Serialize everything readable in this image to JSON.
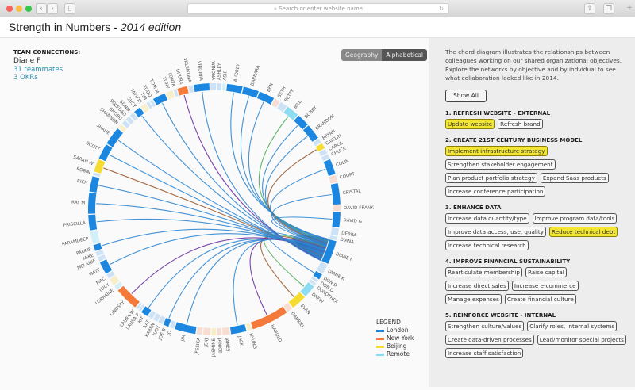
{
  "browser": {
    "url_placeholder": "Search or enter website name",
    "back": "‹",
    "forward": "›"
  },
  "header": {
    "title": "Strength in Numbers - ",
    "edition": "2014 edition"
  },
  "team": {
    "heading": "TEAM CONNECTIONS:",
    "name": "Diane F",
    "teammates": "31 teammates",
    "okrs": "3 OKRs"
  },
  "toggle": {
    "geography": "Geography",
    "alphabetical": "Alphabetical",
    "active": "Alphabetical"
  },
  "colors": {
    "London": "#1b87e0",
    "New York": "#f37a3a",
    "Beijing": "#f5dc2e",
    "Remote": "#8ddcf2"
  },
  "faded": {
    "London": "#cde3f5",
    "New York": "#f8ddd2",
    "Beijing": "#f6efc8",
    "Remote": "#d3eff8"
  },
  "chord_colors": {
    "London": "#2f86d0",
    "New York": "#6a2fa0",
    "Beijing": "#9a5a2e",
    "Remote": "#4fae5a"
  },
  "legend": {
    "heading": "LEGEND",
    "items": [
      "London",
      "New York",
      "Beijing",
      "Remote"
    ]
  },
  "people": [
    {
      "n": "ASHLEY",
      "l": "London",
      "w": 1,
      "a": false
    },
    {
      "n": "ASIF",
      "l": "Remote",
      "w": 0.8,
      "a": false
    },
    {
      "n": "AUDREY",
      "l": "London",
      "w": 3,
      "a": true
    },
    {
      "n": "BARBARA",
      "l": "London",
      "w": 3,
      "a": true
    },
    {
      "n": "BEN",
      "l": "London",
      "w": 3,
      "a": true
    },
    {
      "n": "BETH",
      "l": "New York",
      "w": 1.2,
      "a": false
    },
    {
      "n": "BETTY",
      "l": "London",
      "w": 1.5,
      "a": false
    },
    {
      "n": "BILL",
      "l": "Remote",
      "w": 2.5,
      "a": true
    },
    {
      "n": "BOBBY",
      "l": "London",
      "w": 2.5,
      "a": true
    },
    {
      "n": "BRANDON",
      "l": "London",
      "w": 3,
      "a": true
    },
    {
      "n": "BRYAN",
      "l": "London",
      "w": 1,
      "a": false
    },
    {
      "n": "CAITLIN",
      "l": "Beijing",
      "w": 1.2,
      "a": true
    },
    {
      "n": "CAROL",
      "l": "London",
      "w": 1,
      "a": false
    },
    {
      "n": "CHUCK",
      "l": "London",
      "w": 1,
      "a": false
    },
    {
      "n": "COLIN",
      "l": "London",
      "w": 3,
      "a": true
    },
    {
      "n": "COURT",
      "l": "New York",
      "w": 1.5,
      "a": false
    },
    {
      "n": "CRISTAL",
      "l": "London",
      "w": 4,
      "a": true
    },
    {
      "n": "DAVID FRANK",
      "l": "New York",
      "w": 1.2,
      "a": false
    },
    {
      "n": "DAVID G",
      "l": "London",
      "w": 3,
      "a": true
    },
    {
      "n": "DEBRA",
      "l": "London",
      "w": 1.5,
      "a": false
    },
    {
      "n": "DIANA",
      "l": "London",
      "w": 0.8,
      "a": false
    },
    {
      "n": "DIANE F",
      "l": "London",
      "w": 4.5,
      "a": true
    },
    {
      "n": "DIANE K",
      "l": "London",
      "w": 2,
      "a": false
    },
    {
      "n": "DON D",
      "l": "London",
      "w": 1.2,
      "a": true
    },
    {
      "n": "DON D",
      "l": "London",
      "w": 0.7,
      "a": false
    },
    {
      "n": "DOROTHEA",
      "l": "London",
      "w": 0.7,
      "a": false
    },
    {
      "n": "DREW",
      "l": "Remote",
      "w": 2.5,
      "a": true
    },
    {
      "n": "EVAN",
      "l": "Beijing",
      "w": 3,
      "a": true
    },
    {
      "n": "GABRIEL",
      "l": "New York",
      "w": 1.2,
      "a": false
    },
    {
      "n": "HAROLD",
      "l": "New York",
      "w": 7,
      "a": true
    },
    {
      "n": "HYUNG",
      "l": "Beijing",
      "w": 1,
      "a": false
    },
    {
      "n": "JACK",
      "l": "London",
      "w": 3,
      "a": true
    },
    {
      "n": "JAMES",
      "l": "New York",
      "w": 1.5,
      "a": false
    },
    {
      "n": "JANICE",
      "l": "New York",
      "w": 1,
      "a": false
    },
    {
      "n": "JASMINE",
      "l": "Beijing",
      "w": 1,
      "a": false
    },
    {
      "n": "JENJ",
      "l": "New York",
      "w": 1.5,
      "a": false
    },
    {
      "n": "JESSICA",
      "l": "New York",
      "w": 1.2,
      "a": false
    },
    {
      "n": "JIM",
      "l": "London",
      "w": 4,
      "a": true
    },
    {
      "n": "JO",
      "l": "London",
      "w": 1,
      "a": false
    },
    {
      "n": "JOE B",
      "l": "London",
      "w": 1.2,
      "a": true
    },
    {
      "n": "JUDY",
      "l": "London",
      "w": 1,
      "a": false
    },
    {
      "n": "KAREN",
      "l": "London",
      "w": 1,
      "a": false
    },
    {
      "n": "KAT",
      "l": "London",
      "w": 1,
      "a": false
    },
    {
      "n": "KIT",
      "l": "London",
      "w": 1.5,
      "a": true
    },
    {
      "n": "LAURA P",
      "l": "London",
      "w": 0.6,
      "a": false
    },
    {
      "n": "LAURA W",
      "l": "London",
      "w": 0.6,
      "a": false
    },
    {
      "n": "LINDSAY",
      "l": "New York",
      "w": 4.5,
      "a": true
    },
    {
      "n": "LORRAINE",
      "l": "Remote",
      "w": 1,
      "a": false
    },
    {
      "n": "LUCY",
      "l": "Beijing",
      "w": 1.5,
      "a": false
    },
    {
      "n": "MAC",
      "l": "London",
      "w": 1,
      "a": false
    },
    {
      "n": "MATT",
      "l": "London",
      "w": 2.5,
      "a": true
    },
    {
      "n": "MELANIE",
      "l": "London",
      "w": 1,
      "a": false
    },
    {
      "n": "MIKE",
      "l": "London",
      "w": 1,
      "a": false
    },
    {
      "n": "PADME",
      "l": "London",
      "w": 1.3,
      "a": true
    },
    {
      "n": "PARAMDEEP",
      "l": "Remote",
      "w": 2.5,
      "a": false
    },
    {
      "n": "PRISCILLA",
      "l": "London",
      "w": 3,
      "a": true
    },
    {
      "n": "RAY M",
      "l": "London",
      "w": 4,
      "a": true
    },
    {
      "n": "RICH",
      "l": "London",
      "w": 3,
      "a": true
    },
    {
      "n": "ROBIN",
      "l": "London",
      "w": 0.7,
      "a": false
    },
    {
      "n": "SARAH W",
      "l": "Beijing",
      "w": 2.5,
      "a": true
    },
    {
      "n": "SCOTT",
      "l": "London",
      "w": 3,
      "a": true
    },
    {
      "n": "SHANE",
      "l": "London",
      "w": 3.5,
      "a": true
    },
    {
      "n": "SHANNON",
      "l": "Beijing",
      "w": 1,
      "a": false
    },
    {
      "n": "SHOBU",
      "l": "London",
      "w": 1,
      "a": false
    },
    {
      "n": "SOLEDAD",
      "l": "London",
      "w": 1,
      "a": false
    },
    {
      "n": "SONIA",
      "l": "London",
      "w": 1,
      "a": false
    },
    {
      "n": "SUSY",
      "l": "London",
      "w": 1.5,
      "a": true
    },
    {
      "n": "TAYLOR",
      "l": "Beijing",
      "w": 1.2,
      "a": false
    },
    {
      "n": "TIM",
      "l": "London",
      "w": 0.7,
      "a": false
    },
    {
      "n": "TODD",
      "l": "London",
      "w": 0.7,
      "a": false
    },
    {
      "n": "TOM M",
      "l": "London",
      "w": 2.5,
      "a": true
    },
    {
      "n": "TONY",
      "l": "Beijing",
      "w": 1.5,
      "a": false
    },
    {
      "n": "TONYA",
      "l": "London",
      "w": 0.7,
      "a": false
    },
    {
      "n": "UHURA",
      "l": "New York",
      "w": 2,
      "a": true
    },
    {
      "n": "VALENTINA",
      "l": "London",
      "w": 1,
      "a": false
    },
    {
      "n": "VIRGINIA",
      "l": "London",
      "w": 3,
      "a": true
    },
    {
      "n": "WINONA",
      "l": "London",
      "w": 1.2,
      "a": false
    }
  ],
  "focus": "DIANE F",
  "sidebar": {
    "description": "The chord diagram illustrates the relationships between colleagues working on our shared organizational objectives. Explore the networks by objective and by indvidual to see what collaboration looked like in 2014.",
    "show_all": "Show All",
    "objectives": [
      {
        "title": "1. REFRESH WEBSITE - EXTERNAL",
        "tags": [
          {
            "t": "Update website",
            "hl": true
          },
          {
            "t": "Refresh brand",
            "hl": false
          }
        ]
      },
      {
        "title": "2. CREATE 21ST CENTURY BUSINESS MODEL",
        "tags": [
          {
            "t": "Implement infrastructure strategy",
            "hl": true
          },
          {
            "t": "Strengthen stakeholder engagement",
            "hl": false
          },
          {
            "t": "Plan product portfolio strategy",
            "hl": false
          },
          {
            "t": "Expand Saas products",
            "hl": false
          },
          {
            "t": "Increase conference participation",
            "hl": false
          }
        ]
      },
      {
        "title": "3. ENHANCE DATA",
        "tags": [
          {
            "t": "Increase data quantity/type",
            "hl": false
          },
          {
            "t": "Improve program data/tools",
            "hl": false
          },
          {
            "t": "Improve data access, use, quality",
            "hl": false
          },
          {
            "t": "Reduce technical debt",
            "hl": true
          },
          {
            "t": "Increase technical research",
            "hl": false
          }
        ]
      },
      {
        "title": "4. IMPROVE FINANCIAL SUSTAINABILITY",
        "tags": [
          {
            "t": "Rearticulate membership",
            "hl": false
          },
          {
            "t": "Raise capital",
            "hl": false
          },
          {
            "t": "Increase direct sales",
            "hl": false
          },
          {
            "t": "Increase e-commerce",
            "hl": false
          },
          {
            "t": "Manage expenses",
            "hl": false
          },
          {
            "t": "Create financial culture",
            "hl": false
          }
        ]
      },
      {
        "title": "5. REINFORCE WEBSITE - INTERNAL",
        "tags": [
          {
            "t": "Strengthen culture/values",
            "hl": false
          },
          {
            "t": "Clarify roles, internal systems",
            "hl": false
          },
          {
            "t": "Create data-driven processes",
            "hl": false
          },
          {
            "t": "Lead/monitor special projects",
            "hl": false
          },
          {
            "t": "Increase staff satisfaction",
            "hl": false
          }
        ]
      }
    ]
  }
}
